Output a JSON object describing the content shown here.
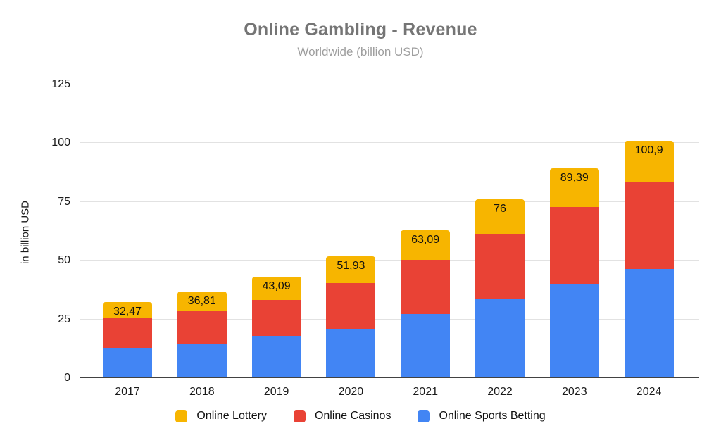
{
  "chart_data": {
    "type": "bar",
    "stacked": true,
    "title": "Online Gambling - Revenue",
    "subtitle": "Worldwide (billion USD)",
    "ylabel": "in billion USD",
    "ylim": [
      0,
      125
    ],
    "yticks": [
      0,
      25,
      50,
      75,
      100,
      125
    ],
    "grid": true,
    "legend_position": "bottom",
    "categories": [
      "2017",
      "2018",
      "2019",
      "2020",
      "2021",
      "2022",
      "2023",
      "2024"
    ],
    "series": [
      {
        "name": "Online Sports Betting",
        "color": "#4285F4",
        "values": [
          13.0,
          14.5,
          17.9,
          21.0,
          27.2,
          33.5,
          40.1,
          46.4
        ]
      },
      {
        "name": "Online Casinos",
        "color": "#E94235",
        "values": [
          12.5,
          14.0,
          15.4,
          19.4,
          23.1,
          27.9,
          32.7,
          36.9
        ]
      },
      {
        "name": "Online Lottery",
        "color": "#F7B500",
        "values": [
          6.97,
          8.31,
          9.79,
          11.53,
          12.79,
          14.6,
          16.59,
          17.6
        ]
      }
    ],
    "total_labels": [
      "32,47",
      "36,81",
      "43,09",
      "51,93",
      "63,09",
      "76",
      "89,39",
      "100,9"
    ],
    "totals": [
      32.47,
      36.81,
      43.09,
      51.93,
      63.09,
      76,
      89.39,
      100.9
    ],
    "legend_entries": [
      "Online Lottery",
      "Online Casinos",
      "Online Sports Betting"
    ]
  },
  "colors": {
    "title_text": "#757575",
    "subtitle_text": "#9E9E9E",
    "gridline": "#E2E2E2",
    "axis_line": "#424242",
    "tick_text": "#1A1A1A"
  }
}
